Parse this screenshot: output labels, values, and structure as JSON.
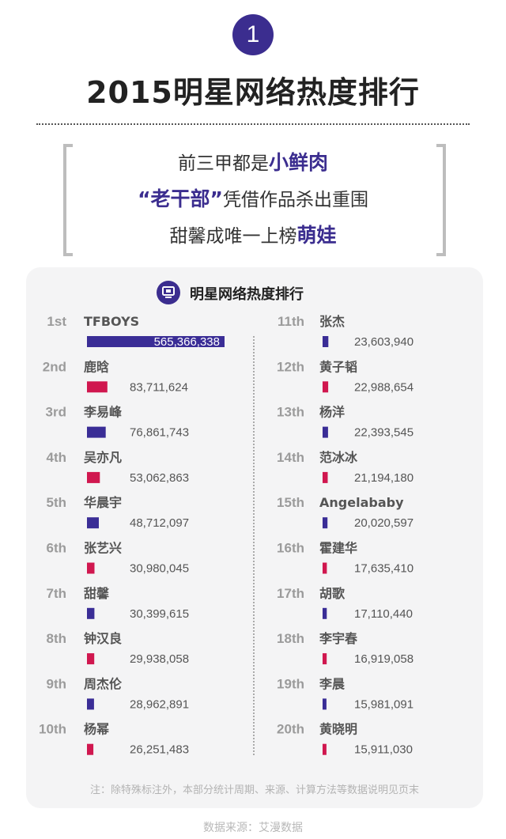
{
  "header": {
    "badge_number": "1",
    "title": "2015明星网络热度排行"
  },
  "intro": {
    "line1_pre": "前三甲都是",
    "line1_hl": "小鲜肉",
    "line2_hl": "“老干部”",
    "line2_post": "凭借作品杀出重围",
    "line3_pre": "甜馨成唯一上榜",
    "line3_hl": "萌娃"
  },
  "card": {
    "title": "明星网络热度排行",
    "icon": "monitor-icon"
  },
  "colors": {
    "accent": "#3b2d8f",
    "bar_blue": "#3a2d96",
    "bar_red": "#d0174f"
  },
  "chart_data": {
    "type": "bar",
    "title": "明星网络热度排行",
    "bar_scale_max": 565366338,
    "ranks": [
      {
        "rank": "1st",
        "name": "TFBOYS",
        "value": 565366338,
        "value_label": "565,366,338",
        "color": "blue"
      },
      {
        "rank": "2nd",
        "name": "鹿晗",
        "value": 83711624,
        "value_label": "83,711,624",
        "color": "red"
      },
      {
        "rank": "3rd",
        "name": "李易峰",
        "value": 76861743,
        "value_label": "76,861,743",
        "color": "blue"
      },
      {
        "rank": "4th",
        "name": "吴亦凡",
        "value": 53062863,
        "value_label": "53,062,863",
        "color": "red"
      },
      {
        "rank": "5th",
        "name": "华晨宇",
        "value": 48712097,
        "value_label": "48,712,097",
        "color": "blue"
      },
      {
        "rank": "6th",
        "name": "张艺兴",
        "value": 30980045,
        "value_label": "30,980,045",
        "color": "red"
      },
      {
        "rank": "7th",
        "name": "甜馨",
        "value": 30399615,
        "value_label": "30,399,615",
        "color": "blue"
      },
      {
        "rank": "8th",
        "name": "钟汉良",
        "value": 29938058,
        "value_label": "29,938,058",
        "color": "red"
      },
      {
        "rank": "9th",
        "name": "周杰伦",
        "value": 28962891,
        "value_label": "28,962,891",
        "color": "blue"
      },
      {
        "rank": "10th",
        "name": "杨幂",
        "value": 26251483,
        "value_label": "26,251,483",
        "color": "red"
      },
      {
        "rank": "11th",
        "name": "张杰",
        "value": 23603940,
        "value_label": "23,603,940",
        "color": "blue"
      },
      {
        "rank": "12th",
        "name": "黄子韬",
        "value": 22988654,
        "value_label": "22,988,654",
        "color": "red"
      },
      {
        "rank": "13th",
        "name": "杨洋",
        "value": 22393545,
        "value_label": "22,393,545",
        "color": "blue"
      },
      {
        "rank": "14th",
        "name": "范冰冰",
        "value": 21194180,
        "value_label": "21,194,180",
        "color": "red"
      },
      {
        "rank": "15th",
        "name": "Angelababy",
        "value": 20020597,
        "value_label": "20,020,597",
        "color": "blue"
      },
      {
        "rank": "16th",
        "name": "霍建华",
        "value": 17635410,
        "value_label": "17,635,410",
        "color": "red"
      },
      {
        "rank": "17th",
        "name": "胡歌",
        "value": 17110440,
        "value_label": "17,110,440",
        "color": "blue"
      },
      {
        "rank": "18th",
        "name": "李宇春",
        "value": 16919058,
        "value_label": "16,919,058",
        "color": "red"
      },
      {
        "rank": "19th",
        "name": "李晨",
        "value": 15981091,
        "value_label": "15,981,091",
        "color": "blue"
      },
      {
        "rank": "20th",
        "name": "黄晓明",
        "value": 15911030,
        "value_label": "15,911,030",
        "color": "red"
      }
    ]
  },
  "footer": {
    "note": "注：除特殊标注外，本部分统计周期、来源、计算方法等数据说明见页末",
    "source": "数据来源：艾漫数据"
  }
}
